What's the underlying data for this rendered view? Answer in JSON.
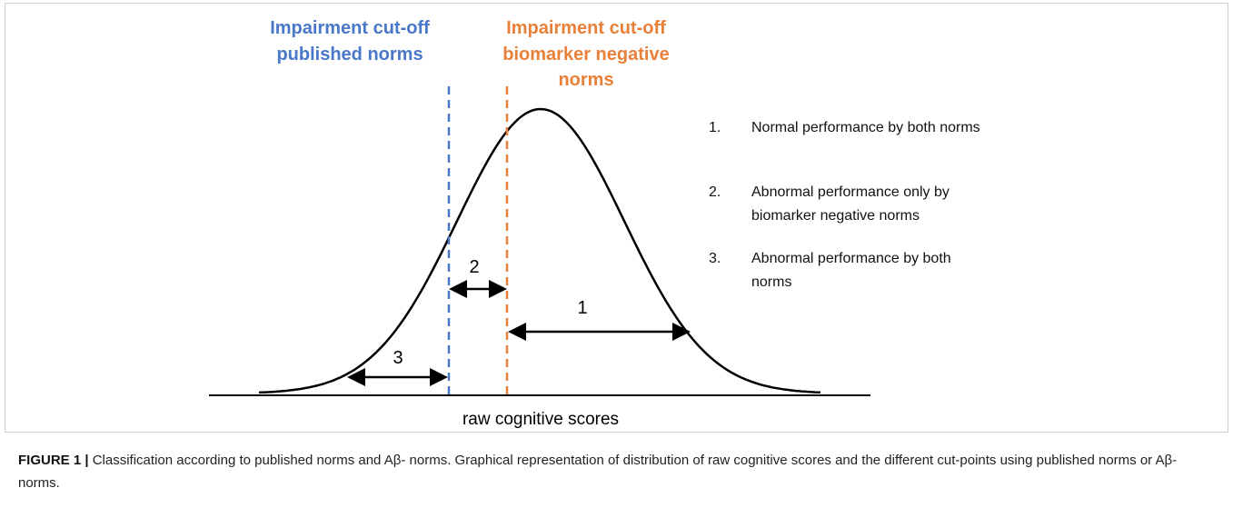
{
  "figure": {
    "cutoffs": {
      "published": [
        "Impairment cut-off",
        "published norms"
      ],
      "biomarker": [
        "Impairment cut-off",
        "biomarker negative",
        "norms"
      ]
    },
    "arrows": {
      "one": "1",
      "two": "2",
      "three": "3"
    },
    "axis_label": "raw cognitive scores",
    "legend": [
      {
        "number": "1.",
        "lines": [
          "Normal performance by both norms"
        ]
      },
      {
        "number": "2.",
        "lines": [
          "Abnormal performance only by",
          "biomarker negative norms"
        ]
      },
      {
        "number": "3.",
        "lines": [
          "Abnormal performance by both",
          "norms"
        ]
      }
    ]
  },
  "caption": {
    "label": "FIGURE 1 |",
    "text": "Classification according to published norms and Aβ- norms. Graphical representation of distribution of raw cognitive scores and the different cut-points using published norms or Aβ- norms."
  }
}
